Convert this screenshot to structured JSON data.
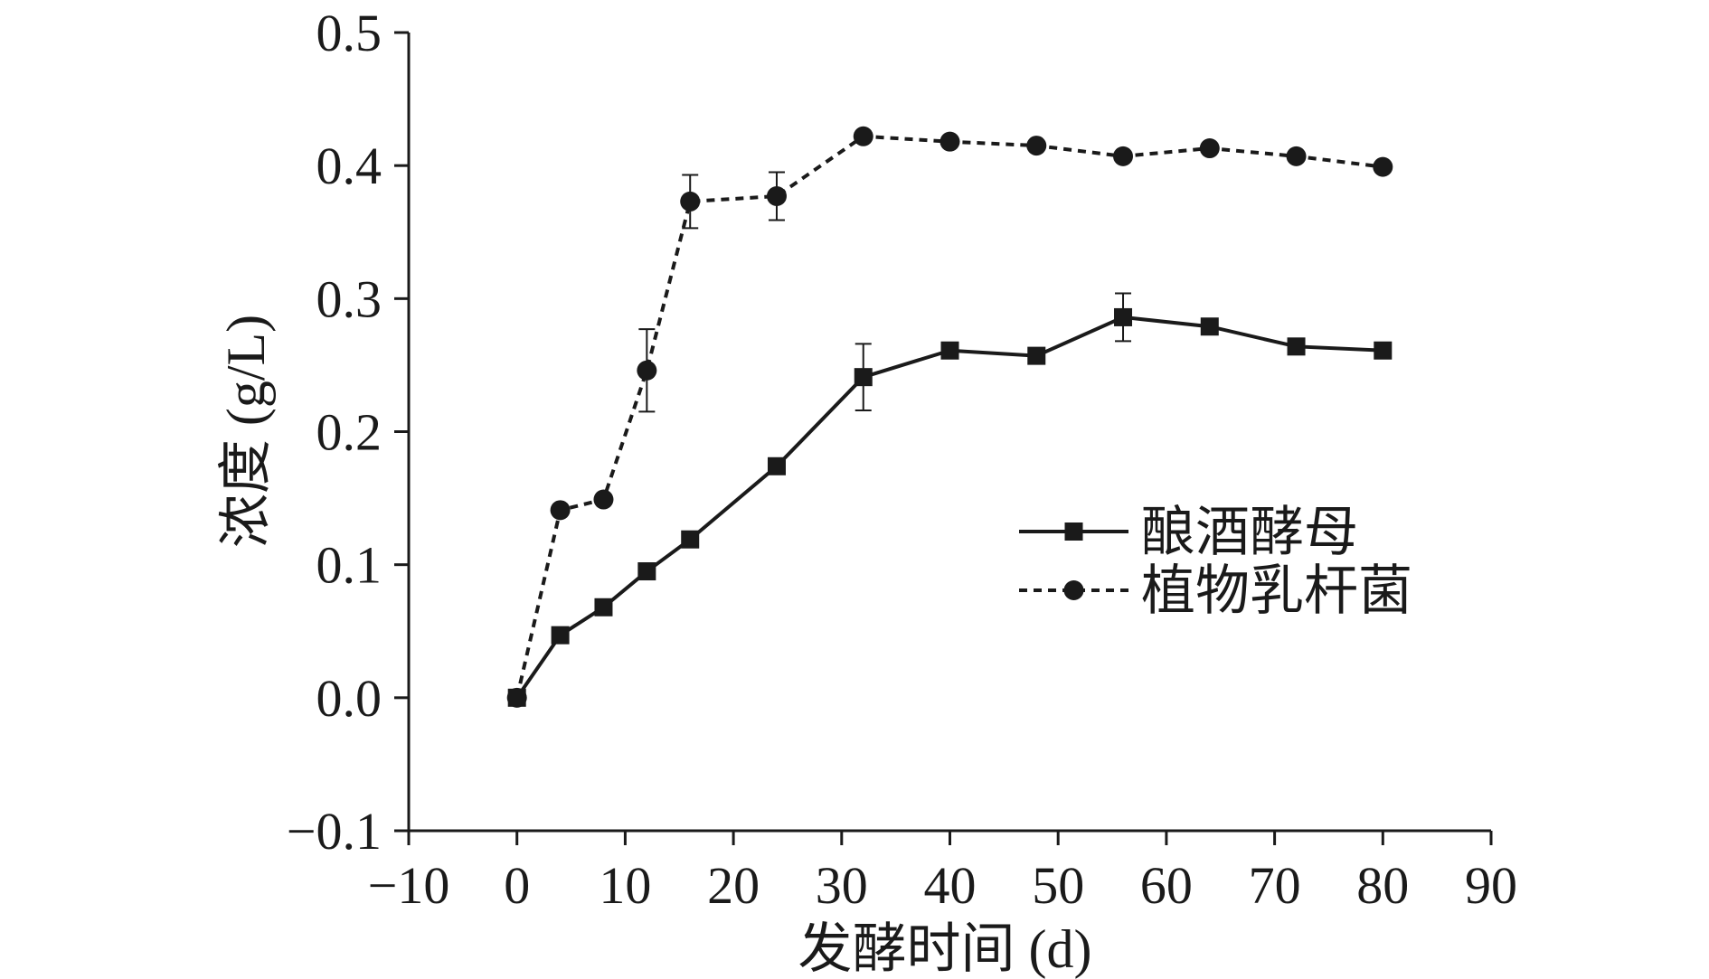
{
  "chart_data": {
    "type": "line",
    "xlabel": "发酵时间 (d)",
    "ylabel": "浓度 (g/L)",
    "xlim": [
      -10,
      90
    ],
    "ylim": [
      -0.1,
      0.5
    ],
    "xticks": [
      -10,
      0,
      10,
      20,
      30,
      40,
      50,
      60,
      70,
      80,
      90
    ],
    "xtick_labels": [
      "−10",
      "0",
      "10",
      "20",
      "30",
      "40",
      "50",
      "60",
      "70",
      "80",
      "90"
    ],
    "yticks": [
      -0.1,
      0.0,
      0.1,
      0.2,
      0.3,
      0.4,
      0.5
    ],
    "ytick_labels": [
      "−0.1",
      "0.0",
      "0.1",
      "0.2",
      "0.3",
      "0.4",
      "0.5"
    ],
    "legend_position": "right",
    "grid": false,
    "series": [
      {
        "name": "酿酒酵母",
        "line_style": "solid",
        "marker": "square",
        "color": "#1a1a1a",
        "x": [
          0,
          4,
          8,
          12,
          16,
          24,
          32,
          40,
          48,
          56,
          64,
          72,
          80
        ],
        "y": [
          0.0,
          0.047,
          0.068,
          0.095,
          0.119,
          0.174,
          0.241,
          0.261,
          0.257,
          0.286,
          0.279,
          0.264,
          0.261
        ],
        "error": [
          0,
          0,
          0,
          0,
          0,
          0,
          0.025,
          0,
          0,
          0.018,
          0,
          0,
          0
        ]
      },
      {
        "name": "植物乳杆菌",
        "line_style": "dashed",
        "marker": "circle",
        "color": "#1a1a1a",
        "x": [
          0,
          4,
          8,
          12,
          16,
          24,
          32,
          40,
          48,
          56,
          64,
          72,
          80
        ],
        "y": [
          0.0,
          0.141,
          0.149,
          0.246,
          0.373,
          0.377,
          0.422,
          0.418,
          0.415,
          0.407,
          0.413,
          0.407,
          0.399
        ],
        "error": [
          0,
          0,
          0,
          0.031,
          0.02,
          0.018,
          0,
          0,
          0,
          0,
          0,
          0,
          0
        ]
      }
    ]
  }
}
